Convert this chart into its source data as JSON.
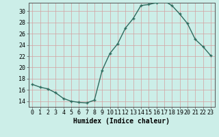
{
  "xlabel": "Humidex (Indice chaleur)",
  "x": [
    0,
    1,
    2,
    3,
    4,
    5,
    6,
    7,
    8,
    9,
    10,
    11,
    12,
    13,
    14,
    15,
    16,
    17,
    18,
    19,
    20,
    21,
    22,
    23
  ],
  "y": [
    17,
    16.5,
    16.2,
    15.5,
    14.5,
    14.0,
    13.8,
    13.7,
    14.2,
    19.5,
    22.5,
    24.2,
    27.0,
    28.7,
    31.0,
    31.2,
    31.5,
    31.8,
    31.0,
    29.5,
    27.8,
    25.0,
    23.7,
    22.1
  ],
  "line_color": "#2e6b5e",
  "bg_color": "#cceee8",
  "grid_color_major": "#c8b8b8",
  "grid_color_minor": "#ddd0d0",
  "yticks": [
    14,
    16,
    18,
    20,
    22,
    24,
    26,
    28,
    30
  ],
  "ylim": [
    13.0,
    31.5
  ],
  "xlim": [
    -0.5,
    23.5
  ],
  "tick_fontsize": 6.0,
  "xlabel_fontsize": 7.0
}
